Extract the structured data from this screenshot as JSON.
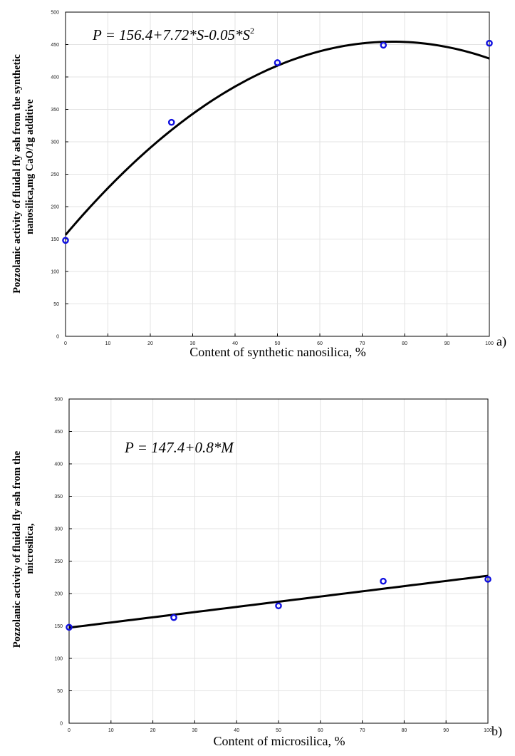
{
  "chart_data": [
    {
      "type": "scatter",
      "panel_label": "a)",
      "equation": {
        "text": "P = 156.4+7.72*S-0.05*S",
        "superscript": "2"
      },
      "xlabel": "Content of synthetic nanosilica, %",
      "ylabel_lines": [
        "Pozzolanic activity of fluidal fly ash from the synthetic",
        "nanosilica,mg CaO/1g additive"
      ],
      "xlim": [
        0,
        100
      ],
      "ylim": [
        0,
        500
      ],
      "x_ticks": [
        "0",
        "10",
        "20",
        "30",
        "40",
        "50",
        "60",
        "70",
        "80",
        "90",
        "100"
      ],
      "y_ticks": [
        "0",
        "50",
        "100",
        "150",
        "200",
        "250",
        "300",
        "350",
        "400",
        "450",
        "500"
      ],
      "grid": true,
      "series": [
        {
          "x": [
            0,
            25,
            50,
            75,
            100
          ],
          "y": [
            148,
            330,
            422,
            449,
            452
          ]
        }
      ],
      "fit": {
        "kind": "quadratic",
        "coefficients": [
          156.4,
          7.72,
          -0.05
        ]
      },
      "colors": {
        "points": "#1010e0",
        "fit": "#000000"
      }
    },
    {
      "type": "scatter",
      "panel_label": "b)",
      "equation": {
        "text": "P = 147.4+0.8*M",
        "superscript": ""
      },
      "xlabel": "Content of microsilica, %",
      "ylabel_lines": [
        "Pozzolanic activity of fluidal fly ash from the",
        "microsilica,"
      ],
      "xlim": [
        0,
        100
      ],
      "ylim": [
        0,
        500
      ],
      "x_ticks": [
        "0",
        "10",
        "20",
        "30",
        "40",
        "50",
        "60",
        "70",
        "80",
        "90",
        "100"
      ],
      "y_ticks": [
        "0",
        "50",
        "100",
        "150",
        "200",
        "250",
        "300",
        "350",
        "400",
        "450",
        "500"
      ],
      "grid": true,
      "series": [
        {
          "x": [
            0,
            25,
            50,
            75,
            100
          ],
          "y": [
            148,
            163,
            181,
            219,
            222
          ]
        }
      ],
      "fit": {
        "kind": "linear",
        "coefficients": [
          147.4,
          0.8
        ]
      },
      "colors": {
        "points": "#1010e0",
        "fit": "#000000"
      }
    }
  ]
}
